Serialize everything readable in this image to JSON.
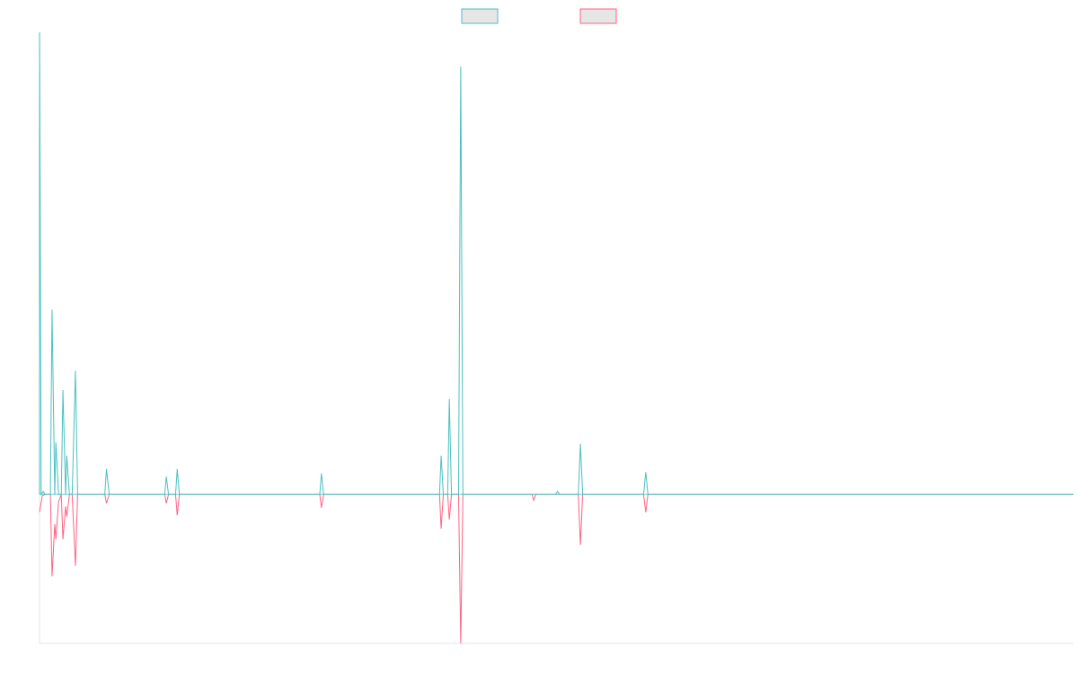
{
  "chart_data": {
    "type": "line",
    "title": "",
    "xlabel": "",
    "ylabel": "",
    "x_range": [
      0,
      190
    ],
    "ylim": [
      -100,
      310
    ],
    "grid": false,
    "legend": {
      "placement": "top-center",
      "entries": [
        {
          "label": "",
          "color": "#4bc0c0",
          "fill": "#e6e6e6"
        },
        {
          "label": "",
          "color": "#ff6384",
          "fill": "#e6e6e6"
        }
      ]
    },
    "colors": {
      "axis": "#e6e6e6",
      "baseline": "#4bc0c0"
    },
    "series": [
      {
        "color": "#4bc0c0",
        "points": [
          [
            0,
            0
          ],
          [
            0.01,
            310
          ],
          [
            0.3,
            0
          ],
          [
            0.7,
            2
          ],
          [
            1,
            0
          ],
          [
            2,
            0
          ],
          [
            2.3,
            124
          ],
          [
            2.8,
            0
          ],
          [
            3,
            35
          ],
          [
            3.5,
            0
          ],
          [
            4,
            0
          ],
          [
            4.3,
            70
          ],
          [
            4.8,
            0
          ],
          [
            5,
            26
          ],
          [
            5.5,
            0
          ],
          [
            6,
            0
          ],
          [
            6.6,
            83
          ],
          [
            7,
            0
          ],
          [
            12,
            0
          ],
          [
            12.3,
            17
          ],
          [
            12.8,
            0
          ],
          [
            23,
            0
          ],
          [
            23.3,
            12
          ],
          [
            23.7,
            0
          ],
          [
            25,
            0
          ],
          [
            25.3,
            17
          ],
          [
            25.7,
            0
          ],
          [
            51.5,
            0
          ],
          [
            51.8,
            14
          ],
          [
            52.2,
            0
          ],
          [
            73.5,
            0
          ],
          [
            73.8,
            26
          ],
          [
            74.2,
            0
          ],
          [
            75,
            0
          ],
          [
            75.3,
            64
          ],
          [
            75.7,
            0
          ],
          [
            77,
            0
          ],
          [
            77.4,
            287
          ],
          [
            77.8,
            0
          ],
          [
            94,
            0
          ],
          [
            94.3,
            0
          ],
          [
            94.8,
            0
          ],
          [
            94.8,
            0
          ],
          [
            95.2,
            2
          ],
          [
            95.6,
            0
          ],
          [
            99,
            0
          ],
          [
            99.4,
            34
          ],
          [
            99.8,
            0
          ],
          [
            111,
            0
          ],
          [
            111.4,
            15
          ],
          [
            111.8,
            0
          ],
          [
            190,
            0
          ]
        ]
      },
      {
        "color": "#ff6384",
        "points": [
          [
            0,
            -12
          ],
          [
            0.5,
            -1
          ],
          [
            1,
            0
          ],
          [
            2,
            0
          ],
          [
            2.3,
            -55
          ],
          [
            2.8,
            -20
          ],
          [
            3,
            -30
          ],
          [
            3.5,
            -5
          ],
          [
            4,
            0
          ],
          [
            4.3,
            -30
          ],
          [
            4.8,
            -8
          ],
          [
            5,
            -15
          ],
          [
            5.5,
            0
          ],
          [
            6,
            0
          ],
          [
            6.6,
            -48
          ],
          [
            7,
            0
          ],
          [
            12,
            0
          ],
          [
            12.3,
            -6
          ],
          [
            12.8,
            0
          ],
          [
            23,
            0
          ],
          [
            23.3,
            -6
          ],
          [
            23.7,
            0
          ],
          [
            25,
            0
          ],
          [
            25.3,
            -14
          ],
          [
            25.7,
            0
          ],
          [
            51.5,
            0
          ],
          [
            51.8,
            -9
          ],
          [
            52.2,
            0
          ],
          [
            73.5,
            0
          ],
          [
            73.8,
            -23
          ],
          [
            74.2,
            0
          ],
          [
            75,
            0
          ],
          [
            75.3,
            -17
          ],
          [
            75.7,
            0
          ],
          [
            77,
            0
          ],
          [
            77.4,
            -100
          ],
          [
            77.8,
            0
          ],
          [
            90.5,
            0
          ],
          [
            90.8,
            -4
          ],
          [
            91.2,
            0
          ],
          [
            99,
            0
          ],
          [
            99.4,
            -34
          ],
          [
            99.8,
            0
          ],
          [
            111,
            0
          ],
          [
            111.4,
            -12
          ],
          [
            111.8,
            0
          ],
          [
            190,
            0
          ]
        ]
      }
    ]
  }
}
